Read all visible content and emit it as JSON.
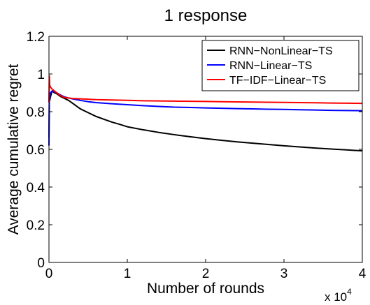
{
  "chart_data": {
    "type": "line",
    "title": "1  response",
    "xlabel": "Number of rounds",
    "ylabel": "Average cumulative regret",
    "x_multiplier_label": "x 10",
    "x_multiplier_exponent": "4",
    "xlim": [
      0,
      40000
    ],
    "ylim": [
      0,
      1.2
    ],
    "x_ticks": [
      0,
      10000,
      20000,
      30000,
      40000
    ],
    "x_tick_labels": [
      "0",
      "1",
      "2",
      "3",
      "4"
    ],
    "y_ticks": [
      0,
      0.2,
      0.4,
      0.6,
      0.8,
      1.0,
      1.2
    ],
    "y_tick_labels": [
      "0",
      "0.2",
      "0.4",
      "0.6",
      "0.8",
      "1",
      "1.2"
    ],
    "grid": false,
    "legend_position": "top-right",
    "series": [
      {
        "name": "RNN−NonLinear−TS",
        "color": "#000000",
        "x": [
          0,
          50,
          100,
          200,
          400,
          700,
          1000,
          1500,
          2000,
          2500,
          3000,
          4000,
          5000,
          6000,
          7000,
          8000,
          9000,
          10000,
          12000,
          14000,
          16000,
          18000,
          20000,
          22000,
          24000,
          26000,
          28000,
          30000,
          32000,
          34000,
          36000,
          38000,
          40000
        ],
        "y": [
          0.66,
          0.9,
          0.86,
          0.88,
          0.91,
          0.9,
          0.895,
          0.88,
          0.87,
          0.86,
          0.845,
          0.815,
          0.795,
          0.775,
          0.76,
          0.745,
          0.733,
          0.72,
          0.704,
          0.69,
          0.678,
          0.667,
          0.657,
          0.648,
          0.64,
          0.633,
          0.626,
          0.619,
          0.613,
          0.607,
          0.602,
          0.597,
          0.592
        ]
      },
      {
        "name": "RNN−Linear−TS",
        "color": "#0000ff",
        "x": [
          0,
          50,
          100,
          200,
          400,
          700,
          1000,
          1500,
          2000,
          3000,
          4000,
          5000,
          6000,
          8000,
          10000,
          12000,
          14000,
          16000,
          18000,
          20000,
          22000,
          24000,
          26000,
          28000,
          30000,
          32000,
          34000,
          36000,
          38000,
          40000
        ],
        "y": [
          0.62,
          0.86,
          0.87,
          0.9,
          0.91,
          0.905,
          0.9,
          0.888,
          0.878,
          0.868,
          0.86,
          0.853,
          0.848,
          0.842,
          0.837,
          0.832,
          0.828,
          0.824,
          0.822,
          0.82,
          0.818,
          0.816,
          0.815,
          0.813,
          0.812,
          0.81,
          0.809,
          0.807,
          0.806,
          0.805
        ]
      },
      {
        "name": "TF−IDF−Linear−TS",
        "color": "#ff0000",
        "x": [
          0,
          50,
          100,
          200,
          400,
          700,
          1000,
          1500,
          2000,
          3000,
          4000,
          5000,
          6000,
          8000,
          10000,
          12000,
          14000,
          16000,
          18000,
          20000,
          22000,
          24000,
          26000,
          28000,
          30000,
          32000,
          34000,
          36000,
          38000,
          40000
        ],
        "y": [
          0.85,
          0.99,
          0.94,
          0.93,
          0.92,
          0.91,
          0.9,
          0.885,
          0.875,
          0.87,
          0.868,
          0.866,
          0.864,
          0.862,
          0.86,
          0.858,
          0.857,
          0.856,
          0.855,
          0.854,
          0.853,
          0.852,
          0.851,
          0.85,
          0.849,
          0.848,
          0.847,
          0.846,
          0.845,
          0.844
        ]
      }
    ]
  }
}
